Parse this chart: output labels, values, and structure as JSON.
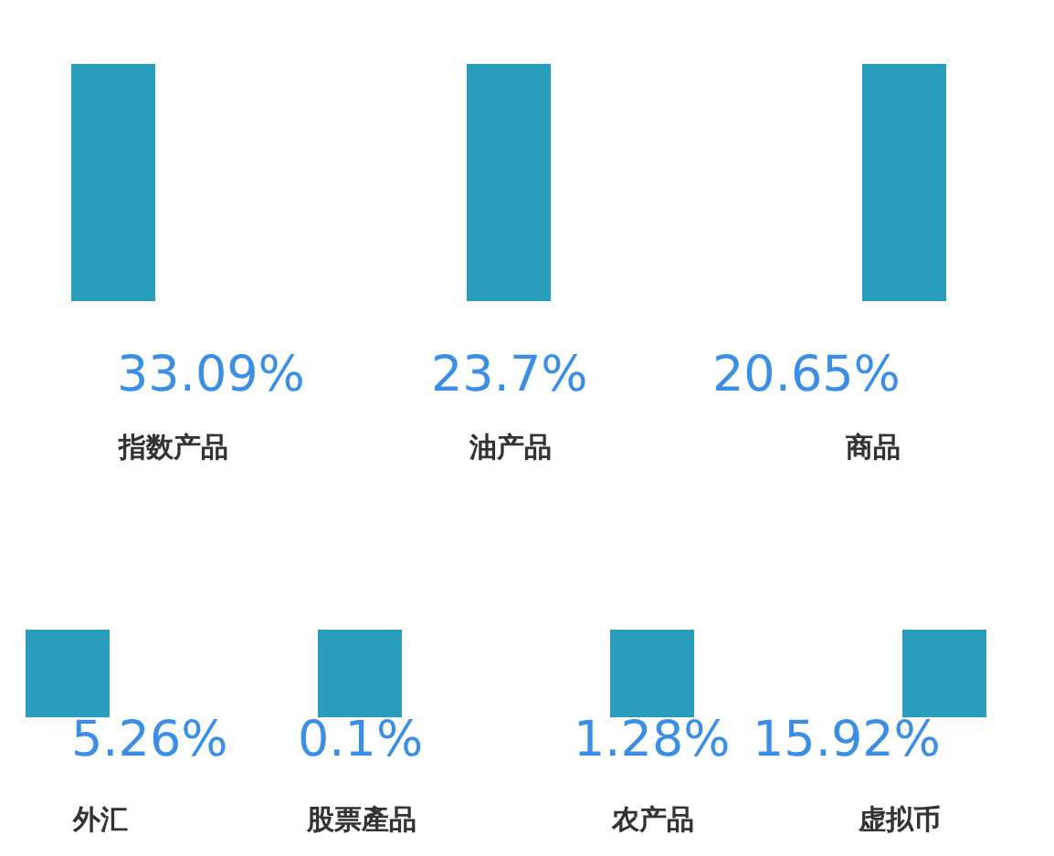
{
  "chart_data": {
    "type": "other",
    "categories": [
      "指数产品",
      "油产品",
      "商品",
      "外汇",
      "股票產品",
      "农产品",
      "虚拟币"
    ],
    "values": [
      33.09,
      23.7,
      20.65,
      5.26,
      0.1,
      1.28,
      15.92
    ],
    "value_labels": [
      "33.09%",
      "23.7%",
      "20.65%",
      "5.26%",
      "0.1%",
      "1.28%",
      "15.92%"
    ],
    "color": "#3a8ee6"
  }
}
